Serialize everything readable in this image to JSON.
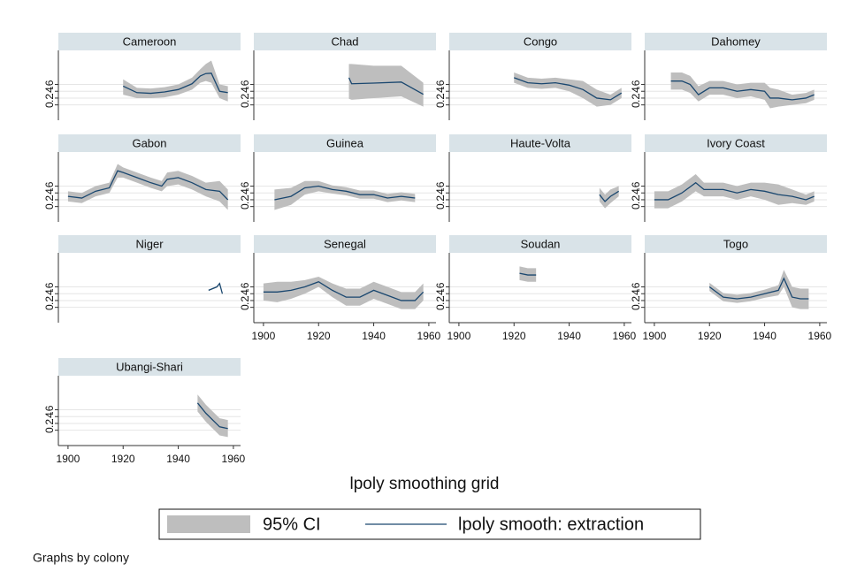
{
  "chart_data": {
    "type": "line",
    "title": "lpoly smoothing grid",
    "note": "Graphs by colony",
    "series": [
      {
        "name": "95% CI",
        "color": "#bebebe"
      },
      {
        "name": "lpoly smooth: extraction",
        "color": "#1a476f"
      }
    ],
    "xlim": [
      1896.5,
      1962.6
    ],
    "xticks": [
      1900,
      1920,
      1940,
      1960
    ],
    "ylim": [
      -0.45,
      1.6
    ],
    "yticks": [
      0,
      {
        "value": 0.2,
        "label": ".2"
      },
      {
        "value": 0.4,
        "label": ".4"
      },
      {
        "value": 0.6,
        "label": ".6"
      }
    ],
    "grid": true,
    "panels": [
      {
        "name": "Cameroon",
        "x": [
          1920,
          1925,
          1930,
          1935,
          1940,
          1945,
          1948,
          1950,
          1952,
          1955,
          1958
        ],
        "values": [
          0.55,
          0.36,
          0.34,
          0.38,
          0.45,
          0.62,
          0.85,
          0.92,
          0.93,
          0.4,
          0.36
        ],
        "lower": [
          0.3,
          0.2,
          0.2,
          0.22,
          0.3,
          0.45,
          0.65,
          0.7,
          0.65,
          0.2,
          0.1
        ],
        "upper": [
          0.75,
          0.5,
          0.48,
          0.52,
          0.6,
          0.8,
          1.05,
          1.2,
          1.3,
          0.6,
          0.55
        ]
      },
      {
        "name": "Chad",
        "x": [
          1931,
          1932,
          1940,
          1950,
          1958
        ],
        "values": [
          0.8,
          0.62,
          0.64,
          0.67,
          0.31
        ],
        "lower": [
          0.18,
          0.15,
          0.2,
          0.25,
          -0.05
        ],
        "upper": [
          1.2,
          1.2,
          1.15,
          1.15,
          0.65
        ]
      },
      {
        "name": "Congo",
        "x": [
          1920,
          1925,
          1930,
          1935,
          1940,
          1945,
          1950,
          1955,
          1959
        ],
        "values": [
          0.8,
          0.65,
          0.62,
          0.65,
          0.58,
          0.45,
          0.2,
          0.15,
          0.35
        ],
        "lower": [
          0.65,
          0.5,
          0.47,
          0.5,
          0.4,
          0.2,
          -0.05,
          0.0,
          0.2
        ],
        "upper": [
          0.95,
          0.8,
          0.77,
          0.8,
          0.75,
          0.7,
          0.45,
          0.3,
          0.5
        ]
      },
      {
        "name": "Dahomey",
        "x": [
          1906,
          1910,
          1913,
          1916,
          1920,
          1925,
          1930,
          1935,
          1940,
          1942,
          1945,
          1950,
          1955,
          1958
        ],
        "values": [
          0.7,
          0.7,
          0.6,
          0.3,
          0.5,
          0.5,
          0.4,
          0.45,
          0.4,
          0.2,
          0.2,
          0.15,
          0.2,
          0.3
        ],
        "lower": [
          0.45,
          0.45,
          0.35,
          0.1,
          0.3,
          0.3,
          0.2,
          0.25,
          0.15,
          -0.1,
          -0.05,
          0.0,
          0.05,
          0.15
        ],
        "upper": [
          0.95,
          0.95,
          0.85,
          0.55,
          0.7,
          0.7,
          0.6,
          0.65,
          0.65,
          0.5,
          0.45,
          0.3,
          0.35,
          0.45
        ]
      },
      {
        "name": "Gabon",
        "x": [
          1900,
          1905,
          1910,
          1915,
          1918,
          1920,
          1925,
          1930,
          1934,
          1936,
          1940,
          1945,
          1950,
          1955,
          1958
        ],
        "values": [
          0.3,
          0.25,
          0.45,
          0.55,
          1.05,
          1.0,
          0.85,
          0.7,
          0.6,
          0.8,
          0.85,
          0.7,
          0.5,
          0.45,
          0.2
        ],
        "lower": [
          0.15,
          0.1,
          0.3,
          0.4,
          0.85,
          0.85,
          0.7,
          0.55,
          0.45,
          0.6,
          0.65,
          0.5,
          0.3,
          0.15,
          -0.1
        ],
        "upper": [
          0.45,
          0.4,
          0.6,
          0.7,
          1.25,
          1.15,
          1.0,
          0.85,
          0.75,
          1.0,
          1.05,
          0.9,
          0.7,
          0.75,
          0.5
        ]
      },
      {
        "name": "Guinea",
        "x": [
          1904,
          1910,
          1915,
          1920,
          1925,
          1930,
          1935,
          1940,
          1945,
          1950,
          1955
        ],
        "values": [
          0.2,
          0.3,
          0.55,
          0.6,
          0.5,
          0.45,
          0.35,
          0.35,
          0.25,
          0.3,
          0.25
        ],
        "lower": [
          -0.1,
          0.05,
          0.35,
          0.45,
          0.38,
          0.33,
          0.23,
          0.23,
          0.13,
          0.18,
          0.13
        ],
        "upper": [
          0.5,
          0.55,
          0.75,
          0.75,
          0.62,
          0.57,
          0.47,
          0.47,
          0.37,
          0.42,
          0.37
        ]
      },
      {
        "name": "Haute-Volta",
        "x": [
          1951,
          1953,
          1955,
          1958
        ],
        "values": [
          0.35,
          0.15,
          0.3,
          0.45
        ],
        "lower": [
          0.15,
          -0.05,
          0.1,
          0.3
        ],
        "upper": [
          0.55,
          0.35,
          0.5,
          0.6
        ]
      },
      {
        "name": "Ivory Coast",
        "x": [
          1900,
          1905,
          1910,
          1915,
          1918,
          1925,
          1930,
          1935,
          1940,
          1945,
          1950,
          1955,
          1958
        ],
        "values": [
          0.2,
          0.2,
          0.4,
          0.7,
          0.5,
          0.5,
          0.4,
          0.5,
          0.45,
          0.35,
          0.3,
          0.2,
          0.3
        ],
        "lower": [
          -0.05,
          -0.05,
          0.15,
          0.45,
          0.3,
          0.3,
          0.2,
          0.3,
          0.2,
          0.05,
          0.1,
          0.05,
          0.15
        ],
        "upper": [
          0.45,
          0.45,
          0.65,
          0.95,
          0.7,
          0.7,
          0.6,
          0.7,
          0.7,
          0.65,
          0.5,
          0.35,
          0.45
        ]
      },
      {
        "name": "Niger",
        "x": [
          1951,
          1954,
          1955,
          1956
        ],
        "values": [
          0.5,
          0.6,
          0.7,
          0.4
        ],
        "lower": [
          0.48,
          0.58,
          0.68,
          0.38
        ],
        "upper": [
          0.52,
          0.62,
          0.72,
          0.42
        ]
      },
      {
        "name": "Senegal",
        "x": [
          1900,
          1905,
          1910,
          1915,
          1920,
          1925,
          1930,
          1935,
          1940,
          1945,
          1950,
          1955,
          1958
        ],
        "values": [
          0.45,
          0.45,
          0.5,
          0.6,
          0.75,
          0.5,
          0.3,
          0.3,
          0.5,
          0.35,
          0.2,
          0.2,
          0.45
        ],
        "lower": [
          0.2,
          0.15,
          0.25,
          0.4,
          0.6,
          0.3,
          0.05,
          0.05,
          0.25,
          0.1,
          -0.05,
          -0.05,
          0.2
        ],
        "upper": [
          0.7,
          0.75,
          0.75,
          0.8,
          0.9,
          0.7,
          0.55,
          0.55,
          0.75,
          0.6,
          0.45,
          0.45,
          0.7
        ]
      },
      {
        "name": "Soudan",
        "x": [
          1922,
          1925,
          1928
        ],
        "values": [
          1.0,
          0.95,
          0.95
        ],
        "lower": [
          0.8,
          0.75,
          0.75
        ],
        "upper": [
          1.2,
          1.15,
          1.15
        ]
      },
      {
        "name": "Togo",
        "x": [
          1920,
          1925,
          1930,
          1935,
          1940,
          1945,
          1947,
          1950,
          1953,
          1956
        ],
        "values": [
          0.6,
          0.3,
          0.25,
          0.3,
          0.4,
          0.5,
          0.85,
          0.3,
          0.25,
          0.25
        ],
        "lower": [
          0.48,
          0.18,
          0.13,
          0.18,
          0.28,
          0.35,
          0.6,
          0.0,
          -0.05,
          -0.05
        ],
        "upper": [
          0.72,
          0.42,
          0.37,
          0.42,
          0.52,
          0.65,
          1.1,
          0.6,
          0.55,
          0.55
        ]
      },
      {
        "name": "Ubangi-Shari",
        "x": [
          1947,
          1950,
          1955,
          1958
        ],
        "values": [
          0.8,
          0.5,
          0.1,
          0.05
        ],
        "lower": [
          0.55,
          0.25,
          -0.15,
          -0.2
        ],
        "upper": [
          1.05,
          0.75,
          0.35,
          0.3
        ]
      }
    ]
  }
}
